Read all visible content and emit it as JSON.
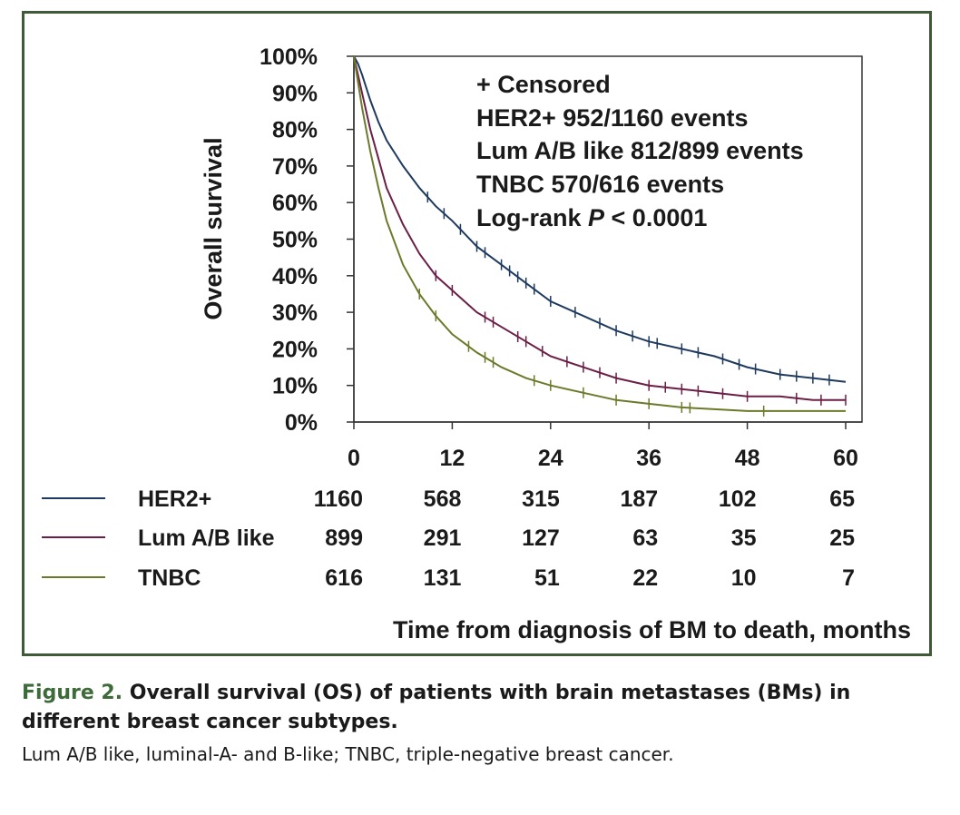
{
  "colors": {
    "her2": "#1f3a5f",
    "lum": "#6b1f47",
    "tnbc": "#6b7a2a",
    "frame": "#3f5a36",
    "fig_label": "#3e6b3a"
  },
  "chart_data": {
    "type": "line",
    "subtype": "kaplan-meier",
    "ylabel": "Overall survival",
    "xlabel": "Time from diagnosis of BM to death, months",
    "xlim": [
      0,
      60
    ],
    "ylim": [
      0,
      100
    ],
    "x_ticks": [
      "0",
      "12",
      "24",
      "36",
      "48",
      "60"
    ],
    "y_ticks": [
      "100%",
      "90%",
      "80%",
      "70%",
      "60%",
      "50%",
      "40%",
      "30%",
      "20%",
      "10%",
      "0%"
    ],
    "annotations": {
      "censored": "+ Censored",
      "her2_events": "HER2+ 952/1160 events",
      "lum_events": "Lum A/B like 812/899 events",
      "tnbc_events": "TNBC 570/616 events",
      "logrank_prefix": "Log-rank ",
      "logrank_p": "P",
      "logrank_suffix": " < 0.0001"
    },
    "series": [
      {
        "name": "HER2+",
        "color": "#1f3a5f",
        "x": [
          0,
          0.5,
          1,
          2,
          3,
          4,
          6,
          8,
          10,
          12,
          15,
          18,
          21,
          24,
          28,
          32,
          36,
          40,
          44,
          48,
          52,
          56,
          60
        ],
        "y": [
          100,
          98,
          95,
          88,
          82,
          77,
          70,
          64,
          59,
          55,
          48,
          43,
          38,
          33,
          29,
          25,
          22,
          20,
          18,
          15,
          13,
          12,
          11
        ],
        "censor_x": [
          9,
          11,
          13,
          15,
          16,
          18,
          19,
          20,
          21,
          22,
          24,
          27,
          30,
          32,
          34,
          36,
          37,
          40,
          42,
          45,
          47,
          49,
          52,
          54,
          56,
          58
        ],
        "risk": [
          "1160",
          "568",
          "315",
          "187",
          "102",
          "65"
        ]
      },
      {
        "name": "Lum A/B like",
        "color": "#6b1f47",
        "x": [
          0,
          0.5,
          1,
          2,
          3,
          4,
          6,
          8,
          10,
          12,
          15,
          18,
          21,
          24,
          28,
          32,
          36,
          40,
          44,
          48,
          52,
          56,
          60
        ],
        "y": [
          100,
          95,
          90,
          80,
          72,
          64,
          54,
          46,
          40,
          36,
          30,
          26,
          22,
          18,
          15,
          12,
          10,
          9,
          8,
          7,
          7,
          6,
          6
        ],
        "censor_x": [
          10,
          12,
          16,
          17,
          20,
          21,
          23,
          26,
          28,
          30,
          32,
          36,
          38,
          40,
          42,
          45,
          48,
          54,
          57,
          60
        ],
        "risk": [
          "899",
          "291",
          "127",
          "63",
          "35",
          "25"
        ]
      },
      {
        "name": "TNBC",
        "color": "#6b7a2a",
        "x": [
          0,
          0.5,
          1,
          2,
          3,
          4,
          6,
          8,
          10,
          12,
          15,
          18,
          21,
          24,
          28,
          32,
          36,
          40,
          44,
          48,
          52,
          56,
          60
        ],
        "y": [
          100,
          93,
          86,
          74,
          64,
          55,
          43,
          35,
          29,
          24,
          19,
          15,
          12,
          10,
          8,
          6,
          5,
          4,
          3.5,
          3,
          3,
          3,
          3
        ],
        "censor_x": [
          8,
          10,
          14,
          16,
          17,
          22,
          24,
          28,
          32,
          36,
          40,
          41,
          50
        ],
        "risk": [
          "616",
          "131",
          "51",
          "22",
          "10",
          "7"
        ]
      }
    ]
  },
  "caption": {
    "label": "Figure 2.",
    "title": " Overall survival (OS) of patients with brain metastases (BMs) in different breast cancer subtypes.",
    "note": "Lum A/B like, luminal-A- and B-like; TNBC, triple-negative breast cancer."
  }
}
